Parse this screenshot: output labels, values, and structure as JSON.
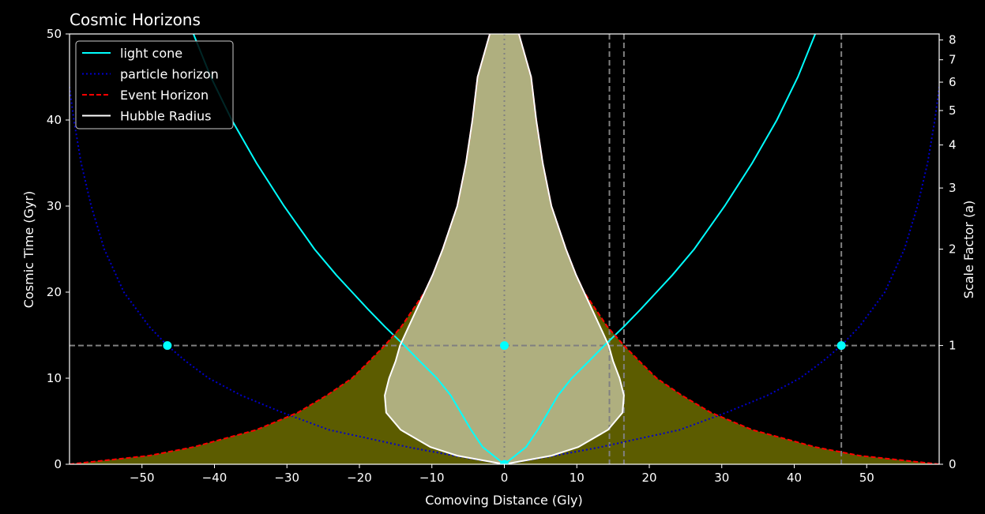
{
  "chart_data": {
    "type": "line",
    "title": "Cosmic Horizons",
    "xlabel": "Comoving Distance (Gly)",
    "ylabel": "Cosmic Time (Gyr)",
    "y2label": "Scale Factor (a)",
    "xlim": [
      -60,
      60
    ],
    "ylim": [
      0,
      50
    ],
    "x_ticks": [
      -50,
      -40,
      -30,
      -20,
      -10,
      0,
      10,
      20,
      30,
      40,
      50
    ],
    "x_tick_labels": [
      "−50",
      "−40",
      "−30",
      "−20",
      "−10",
      "0",
      "10",
      "20",
      "30",
      "40",
      "50"
    ],
    "y_ticks": [
      0,
      10,
      20,
      30,
      40,
      50
    ],
    "y2_ticks": [
      {
        "label": "0",
        "t": 0
      },
      {
        "label": "1",
        "t": 13.8
      },
      {
        "label": "2",
        "t": 25
      },
      {
        "label": "3",
        "t": 32.1
      },
      {
        "label": "4",
        "t": 37.1
      },
      {
        "label": "5",
        "t": 41.1
      },
      {
        "label": "6",
        "t": 44.4
      },
      {
        "label": "7",
        "t": 47.0
      },
      {
        "label": "8",
        "t": 49.3
      }
    ],
    "legend": {
      "placement": "top-left",
      "entries": [
        {
          "label": "light cone",
          "color": "#00ffff",
          "style": "solid"
        },
        {
          "label": "particle horizon",
          "color": "#0000cd",
          "style": "dotted"
        },
        {
          "label": "Event Horizon",
          "color": "#ff0000",
          "style": "dashed"
        },
        {
          "label": "Hubble Radius",
          "color": "#ffffff",
          "style": "solid"
        }
      ]
    },
    "series": [
      {
        "name": "light cone",
        "color": "#00ffff",
        "t": [
          0,
          2,
          4,
          6,
          8,
          10,
          12,
          13.8,
          16,
          18,
          20,
          22,
          25,
          30,
          35,
          40,
          45,
          50
        ],
        "x": [
          0,
          3.0,
          4.6,
          6.0,
          7.4,
          9.3,
          11.7,
          13.8,
          16.5,
          18.8,
          21.0,
          23.2,
          26.2,
          30.4,
          34.2,
          37.6,
          40.5,
          42.9
        ]
      },
      {
        "name": "particle horizon",
        "color": "#0000cd",
        "t": [
          0,
          1,
          2,
          4,
          6,
          8,
          10,
          12,
          13.8,
          16,
          20,
          25,
          30,
          35,
          40,
          45
        ],
        "x": [
          0,
          7,
          13.3,
          24.2,
          30.6,
          36.3,
          40.8,
          44.0,
          46.5,
          49.0,
          52.5,
          55.2,
          57.0,
          58.4,
          59.4,
          60.2
        ]
      },
      {
        "name": "Event Horizon",
        "color": "#ff0000",
        "t": [
          0,
          1,
          2,
          4,
          6,
          8,
          10,
          12,
          13.8,
          16,
          18,
          20,
          22,
          25,
          30,
          35,
          40,
          45,
          50
        ],
        "x": [
          60,
          49,
          42.9,
          34.2,
          28.5,
          24.5,
          21.0,
          18.6,
          16.5,
          14.2,
          12.6,
          11.0,
          9.9,
          8.5,
          6.5,
          5.3,
          4.4,
          3.7,
          2.0
        ]
      },
      {
        "name": "Hubble Radius",
        "color": "#ffffff",
        "t": [
          0,
          1,
          2,
          4,
          6,
          8,
          10,
          12,
          13.8,
          16,
          18,
          20,
          22,
          25,
          30,
          35,
          40,
          45,
          50
        ],
        "x": [
          0,
          6.5,
          10.2,
          14.3,
          16.3,
          16.5,
          15.9,
          15.0,
          14.4,
          13.2,
          12.1,
          11.0,
          9.9,
          8.5,
          6.5,
          5.3,
          4.4,
          3.7,
          2.0
        ]
      }
    ],
    "reference_lines": {
      "horizontal_t": [
        13.8
      ],
      "vertical_x": [
        0,
        14.5,
        16.5,
        46.5
      ]
    },
    "markers": [
      {
        "x": -46.5,
        "t": 13.8
      },
      {
        "x": 0,
        "t": 13.8
      },
      {
        "x": 46.5,
        "t": 13.8
      },
      {
        "x": 0,
        "t": 0
      }
    ],
    "colors": {
      "background": "#000000",
      "event_fill": "#5c5c00",
      "hubble_fill": "#afaf7f",
      "reference": "#808080"
    },
    "grid": false
  }
}
